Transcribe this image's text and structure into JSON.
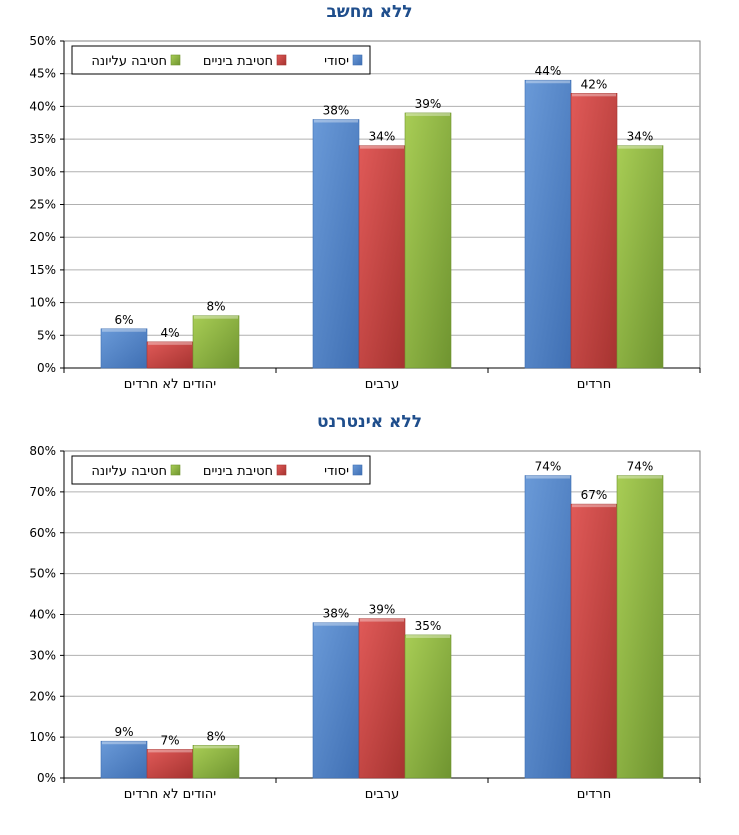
{
  "chart_data": [
    {
      "type": "bar",
      "title": "ללא מחשב",
      "categories": [
        "יהודים לא חרדים",
        "ערבים",
        "חרדים"
      ],
      "series": [
        {
          "name": "יסודי",
          "values": [
            6,
            38,
            44
          ],
          "labels": [
            "6%",
            "38%",
            "44%"
          ]
        },
        {
          "name": "חטיבת ביניים",
          "values": [
            4,
            34,
            42
          ],
          "labels": [
            "4%",
            "34%",
            "42%"
          ]
        },
        {
          "name": "חטיבה עליונה",
          "values": [
            8,
            39,
            34
          ],
          "labels": [
            "8%",
            "39%",
            "34%"
          ]
        }
      ],
      "ylim": [
        0,
        50
      ],
      "yticks": [
        "0%",
        "5%",
        "10%",
        "15%",
        "20%",
        "25%",
        "30%",
        "35%",
        "40%",
        "45%",
        "50%"
      ],
      "grid": true,
      "legend_position": "top-left"
    },
    {
      "type": "bar",
      "title": "ללא אינטרנט",
      "categories": [
        "יהודים לא חרדים",
        "ערבים",
        "חרדים"
      ],
      "series": [
        {
          "name": "יסודי",
          "values": [
            9,
            38,
            74
          ],
          "labels": [
            "9%",
            "38%",
            "74%"
          ]
        },
        {
          "name": "חטיבת ביניים",
          "values": [
            7,
            39,
            67
          ],
          "labels": [
            "7%",
            "39%",
            "67%"
          ]
        },
        {
          "name": "חטיבה עליונה",
          "values": [
            8,
            35,
            74
          ],
          "labels": [
            "8%",
            "35%",
            "74%"
          ]
        }
      ],
      "ylim": [
        0,
        80
      ],
      "yticks": [
        "0%",
        "10%",
        "20%",
        "30%",
        "40%",
        "50%",
        "60%",
        "70%",
        "80%"
      ],
      "grid": true,
      "legend_position": "top-left"
    }
  ],
  "colors": {
    "series": [
      {
        "light": "#6a9ad8",
        "dark": "#3f6fb3"
      },
      {
        "light": "#e05a58",
        "dark": "#a63330"
      },
      {
        "light": "#a8cd55",
        "dark": "#6f9430"
      }
    ],
    "title": "#1f4e8c"
  }
}
